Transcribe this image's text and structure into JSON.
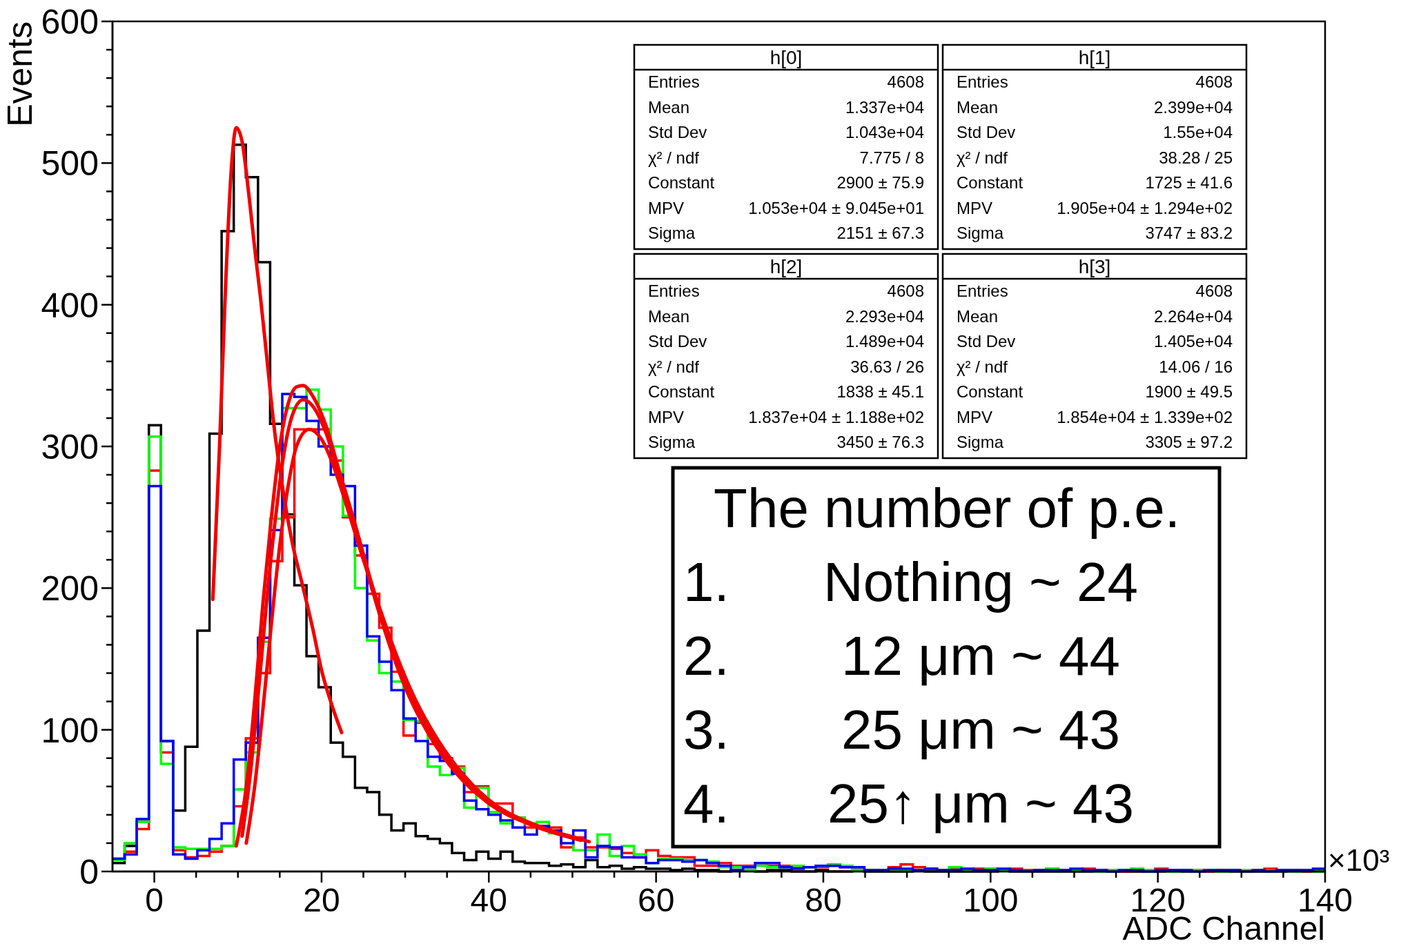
{
  "chart_data": {
    "type": "histogram",
    "xlabel": "ADC Channel",
    "ylabel": "Events",
    "xlim": [
      -5,
      140
    ],
    "ylim": [
      0,
      600
    ],
    "xticks": [
      0,
      {
        "value": 5,
        "label": null
      },
      {
        "value": 10,
        "label": null
      },
      {
        "value": 15,
        "label": null
      },
      20,
      {
        "value": 25,
        "label": null
      },
      {
        "value": 30,
        "label": null
      },
      {
        "value": 35,
        "label": null
      },
      40,
      {
        "value": 45,
        "label": null
      },
      {
        "value": 50,
        "label": null
      },
      {
        "value": 55,
        "label": null
      },
      60,
      {
        "value": 65,
        "label": null
      },
      {
        "value": 70,
        "label": null
      },
      {
        "value": 75,
        "label": null
      },
      80,
      {
        "value": 85,
        "label": null
      },
      {
        "value": 90,
        "label": null
      },
      {
        "value": 95,
        "label": null
      },
      100,
      {
        "value": 105,
        "label": null
      },
      {
        "value": 110,
        "label": null
      },
      {
        "value": 115,
        "label": null
      },
      120,
      {
        "value": 125,
        "label": null
      },
      {
        "value": 130,
        "label": null
      },
      {
        "value": 135,
        "label": null
      },
      140
    ],
    "yticks": [
      0,
      {
        "value": 20,
        "label": null
      },
      {
        "value": 40,
        "label": null
      },
      {
        "value": 60,
        "label": null
      },
      {
        "value": 80,
        "label": null
      },
      100,
      {
        "value": 120,
        "label": null
      },
      {
        "value": 140,
        "label": null
      },
      {
        "value": 160,
        "label": null
      },
      {
        "value": 180,
        "label": null
      },
      200,
      {
        "value": 220,
        "label": null
      },
      {
        "value": 240,
        "label": null
      },
      {
        "value": 260,
        "label": null
      },
      {
        "value": 280,
        "label": null
      },
      300,
      {
        "value": 320,
        "label": null
      },
      {
        "value": 340,
        "label": null
      },
      {
        "value": 360,
        "label": null
      },
      {
        "value": 380,
        "label": null
      },
      400,
      {
        "value": 420,
        "label": null
      },
      {
        "value": 440,
        "label": null
      },
      {
        "value": 460,
        "label": null
      },
      {
        "value": 480,
        "label": null
      },
      500,
      {
        "value": 520,
        "label": null
      },
      {
        "value": 540,
        "label": null
      },
      {
        "value": 560,
        "label": null
      },
      {
        "value": 580,
        "label": null
      },
      600
    ],
    "bins": [
      -5,
      -3.55,
      -2.1,
      -0.65,
      0.8,
      2.25,
      3.7,
      5.15,
      6.6,
      8.05,
      9.5,
      10.95,
      12.4,
      13.85,
      15.3,
      16.75,
      18.2,
      19.65,
      21.1,
      22.55,
      24,
      25.45,
      26.9,
      28.35,
      29.8,
      31.25,
      32.7,
      34.15,
      35.6,
      37.05,
      38.5,
      39.95,
      41.4,
      42.85,
      44.3,
      45.75,
      47.2,
      48.65,
      50.1,
      51.55,
      53,
      54.45,
      55.9,
      57.35,
      58.8,
      60.25,
      61.7,
      63.15,
      64.6,
      66.05,
      67.5,
      68.95,
      70.4,
      71.85,
      73.3,
      74.75,
      76.2,
      77.65,
      79.1,
      80.55,
      82,
      83.45,
      84.9,
      86.35,
      87.8,
      89.25,
      90.7,
      92.15,
      93.6,
      95.05,
      96.5,
      97.95,
      99.4,
      100.85,
      102.3,
      103.75,
      105.2,
      106.65,
      108.1,
      109.55,
      111,
      112.45,
      113.9,
      115.35,
      116.8,
      118.25,
      119.7,
      121.15,
      122.6,
      124.05,
      125.5,
      126.95,
      128.4,
      129.85,
      131.3,
      132.75,
      134.2,
      135.65,
      137.1,
      138.55,
      140
    ],
    "series": [
      {
        "color": "#000000",
        "values": [
          6,
          18,
          35,
          315,
          92,
          43,
          88,
          170,
          309,
          452,
          513,
          490,
          430,
          316,
          252,
          202,
          152,
          130,
          91,
          81,
          59,
          56,
          40,
          29,
          34,
          25,
          23,
          20,
          13,
          8,
          14,
          9,
          14,
          7,
          6,
          6,
          4,
          5,
          3,
          8,
          3,
          4,
          2,
          3,
          2,
          2,
          1,
          2,
          1,
          1,
          0,
          1,
          1,
          0,
          1,
          1,
          0,
          0,
          1,
          0,
          0,
          1,
          0,
          0,
          0,
          0,
          1,
          0,
          0,
          0,
          0,
          0,
          0,
          1,
          0,
          0,
          0,
          0,
          0,
          0,
          0,
          0,
          0,
          0,
          0,
          0,
          0,
          0,
          0,
          0,
          0,
          0,
          0,
          0,
          0,
          0,
          0,
          0,
          0,
          0
        ]
      },
      {
        "color": "#ff0000",
        "values": [
          9,
          14,
          30,
          283,
          84,
          15,
          10,
          11,
          14,
          18,
          46,
          94,
          140,
          219,
          250,
          312,
          312,
          312,
          290,
          250,
          223,
          196,
          172,
          141,
          96,
          105,
          90,
          80,
          74,
          56,
          60,
          48,
          48,
          38,
          31,
          32,
          31,
          17,
          24,
          17,
          17,
          16,
          13,
          10,
          15,
          11,
          10,
          10,
          4,
          4,
          6,
          4,
          4,
          6,
          4,
          4,
          3,
          3,
          3,
          4,
          3,
          3,
          1,
          1,
          3,
          5,
          3,
          2,
          1,
          2,
          1,
          2,
          2,
          1,
          2,
          1,
          1,
          2,
          1,
          1,
          2,
          1,
          1,
          0,
          1,
          1,
          2,
          1,
          1,
          1,
          0,
          1,
          1,
          0,
          1,
          2,
          1,
          1,
          0,
          1
        ]
      },
      {
        "color": "#00ff00",
        "values": [
          8,
          20,
          35,
          307,
          76,
          17,
          16,
          16,
          16,
          18,
          58,
          84,
          162,
          249,
          327,
          327,
          340,
          326,
          300,
          251,
          200,
          163,
          140,
          134,
          107,
          106,
          74,
          68,
          73,
          45,
          59,
          42,
          34,
          38,
          34,
          35,
          27,
          25,
          15,
          15,
          26,
          11,
          18,
          12,
          6,
          9,
          9,
          8,
          8,
          7,
          3,
          3,
          1,
          4,
          3,
          3,
          4,
          3,
          4,
          5,
          4,
          1,
          1,
          1,
          1,
          1,
          1,
          2,
          1,
          3,
          1,
          1,
          2,
          1,
          1,
          0,
          1,
          2,
          1,
          1,
          1,
          0,
          1,
          1,
          2,
          1,
          1,
          0,
          1,
          1,
          1,
          0,
          1,
          1,
          1,
          0,
          1,
          0,
          1,
          0
        ]
      },
      {
        "color": "#0000ff",
        "values": [
          9,
          12,
          37,
          272,
          92,
          12,
          9,
          15,
          23,
          34,
          79,
          91,
          165,
          241,
          337,
          335,
          318,
          300,
          280,
          272,
          230,
          166,
          148,
          128,
          108,
          92,
          81,
          78,
          69,
          50,
          44,
          40,
          36,
          31,
          26,
          32,
          29,
          20,
          29,
          10,
          18,
          17,
          10,
          10,
          6,
          8,
          8,
          7,
          8,
          6,
          4,
          1,
          3,
          6,
          6,
          3,
          2,
          3,
          4,
          4,
          3,
          3,
          1,
          1,
          2,
          2,
          1,
          2,
          1,
          1,
          2,
          1,
          1,
          2,
          1,
          0,
          1,
          1,
          1,
          2,
          1,
          1,
          0,
          1,
          1,
          0,
          1,
          1,
          1,
          0,
          1,
          1,
          1,
          0,
          1,
          0,
          1,
          1,
          1,
          2
        ]
      },
      {
        "type": "line",
        "color": "#f20000",
        "x": [
          7,
          7.8,
          8.5,
          9.2,
          9.8,
          10.5,
          11.3,
          12,
          12.7,
          13.5,
          14.3,
          15.5,
          16.5,
          17.6,
          19,
          20,
          21.2,
          22.4
        ],
        "values": [
          192,
          300,
          410,
          495,
          525,
          515,
          478,
          440,
          405,
          360,
          315,
          265,
          232,
          205,
          170,
          142,
          118,
          98
        ]
      },
      {
        "type": "line",
        "color": "#f20000",
        "x": [
          9.8,
          11,
          12,
          13,
          14,
          15,
          16,
          17,
          17.8,
          19,
          20.5,
          22,
          24,
          26,
          28,
          30,
          33,
          36,
          40,
          45,
          51
        ],
        "values": [
          18,
          60,
          120,
          190,
          250,
          300,
          330,
          342,
          343,
          335,
          315,
          285,
          245,
          200,
          162,
          130,
          95,
          70,
          48,
          33,
          22
        ]
      },
      {
        "type": "line",
        "color": "#f20000",
        "x": [
          10.5,
          11.5,
          12.5,
          13.5,
          14.5,
          15.5,
          16.5,
          17.8,
          19,
          20.5,
          22,
          24,
          26,
          28,
          30,
          33,
          36,
          40,
          45,
          51
        ],
        "values": [
          25,
          70,
          130,
          195,
          250,
          295,
          322,
          333,
          328,
          310,
          282,
          245,
          203,
          165,
          133,
          98,
          72,
          50,
          34,
          23
        ]
      },
      {
        "type": "line",
        "color": "#f20000",
        "x": [
          11,
          12,
          13,
          14,
          15,
          16,
          17,
          18.5,
          20,
          21.5,
          23,
          25,
          27,
          29,
          31,
          34,
          37,
          41,
          46,
          52
        ],
        "values": [
          20,
          60,
          115,
          175,
          230,
          272,
          300,
          312,
          305,
          285,
          258,
          220,
          185,
          152,
          124,
          92,
          68,
          46,
          32,
          21
        ]
      }
    ],
    "annotations": [
      "h[0]",
      "Entries",
      "4608",
      "Mean",
      "1.337e+04",
      "Std Dev",
      "1.043e+04",
      "χ² / ndf",
      "7.775 / 8",
      "Constant",
      "2900 ± 75.9",
      "MPV",
      "1.053e+04 ± 9.045e+01",
      "Sigma",
      "2151 ± 67.3",
      "h[1]",
      "Entries",
      "4608",
      "Mean",
      "2.399e+04",
      "Std Dev",
      "1.55e+04",
      "χ² / ndf",
      "38.28 / 25",
      "Constant",
      "1725 ± 41.6",
      "MPV",
      "1.905e+04 ± 1.294e+02",
      "Sigma",
      "3747 ± 83.2",
      "h[2]",
      "Entries",
      "4608",
      "Mean",
      "2.293e+04",
      "Std Dev",
      "1.489e+04",
      "χ² / ndf",
      "36.63 / 26",
      "Constant",
      "1838 ± 45.1",
      "MPV",
      "1.837e+04 ± 1.188e+02",
      "Sigma",
      "3450 ± 76.3",
      "h[3]",
      "Entries",
      "4608",
      "Mean",
      "2.264e+04",
      "Std Dev",
      "1.405e+04",
      "χ² / ndf",
      "14.06 / 16",
      "Constant",
      "1900 ± 49.5",
      "MPV",
      "1.854e+04 ± 1.339e+02",
      "Sigma",
      "3305 ± 97.2",
      "The number of p.e.",
      "1.",
      "Nothing ~ 24",
      "2.",
      "12 μm ~ 44",
      "3.",
      "25 μm ~ 43",
      "4.",
      "25↑ μm ~ 43",
      "×10³"
    ]
  }
}
